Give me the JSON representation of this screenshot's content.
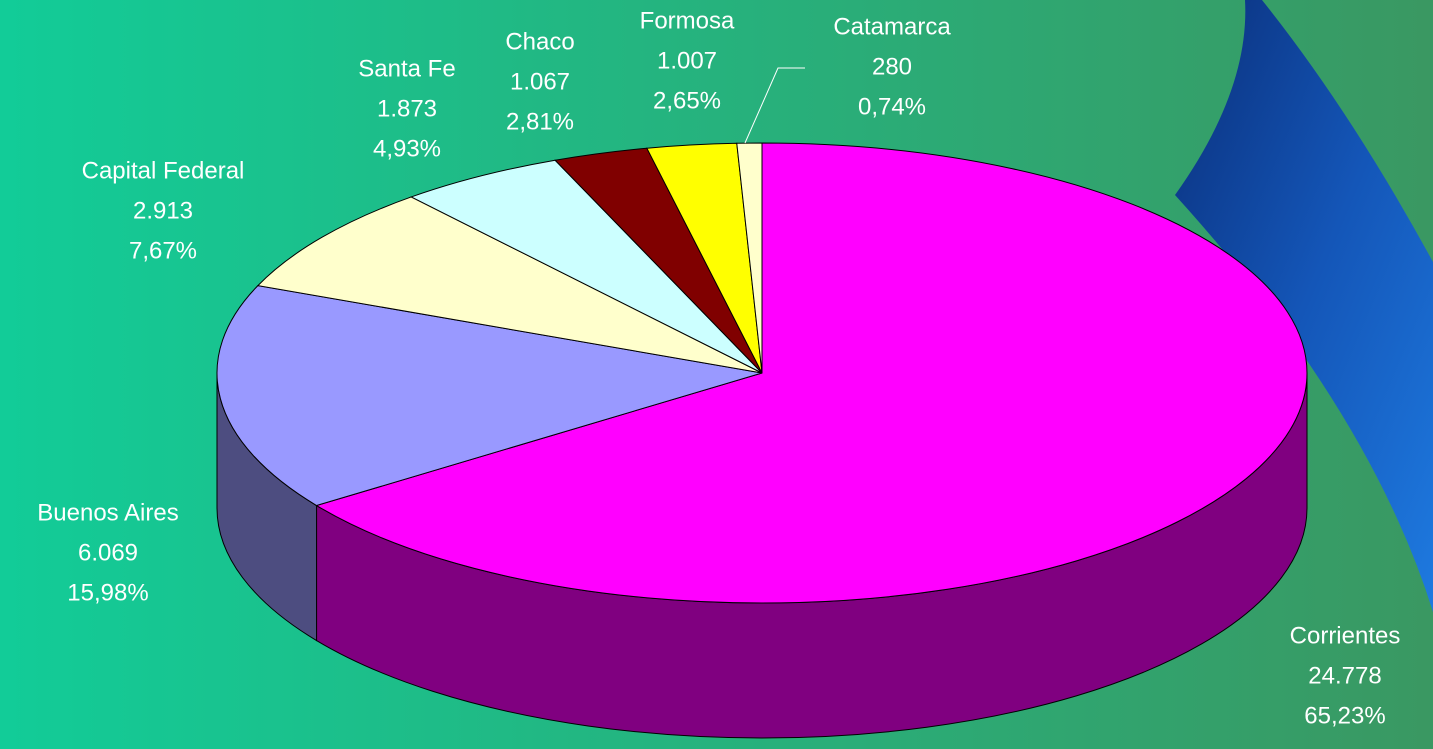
{
  "chart_data": {
    "type": "pie3d",
    "categories": [
      "Corrientes",
      "Buenos Aires",
      "Capital Federal",
      "Santa Fe",
      "Chaco",
      "Formosa",
      "Catamarca"
    ],
    "values": [
      24778,
      6069,
      2913,
      1873,
      1067,
      1007,
      280
    ],
    "value_labels": [
      "24.778",
      "6.069",
      "2.913",
      "1.873",
      "1.067",
      "1.007",
      "280"
    ],
    "percentages": [
      65.23,
      15.98,
      7.67,
      4.93,
      2.81,
      2.65,
      0.74
    ],
    "percentage_labels": [
      "65,23%",
      "15,98%",
      "7,67%",
      "4,93%",
      "2,81%",
      "2,65%",
      "0,74%"
    ],
    "colors": [
      "#ff00ff",
      "#9999ff",
      "#ffffcc",
      "#ccffff",
      "#800000",
      "#ffff00",
      "#ffffcc"
    ]
  }
}
